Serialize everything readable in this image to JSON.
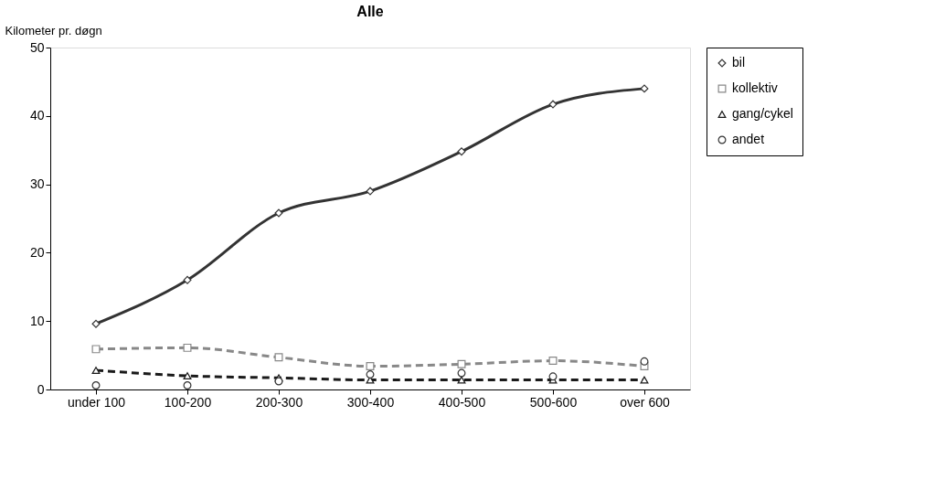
{
  "chart_data": {
    "type": "line",
    "title": "Alle",
    "ylabel": "Kilometer pr. døgn",
    "categories": [
      "under 100",
      "100-200",
      "200-300",
      "300-400",
      "400-500",
      "500-600",
      "over 600"
    ],
    "ylim": [
      0,
      50
    ],
    "yticks": [
      0,
      10,
      20,
      30,
      40,
      50
    ],
    "grid": false,
    "legend": "right",
    "series": [
      {
        "name": "bil",
        "color": "#333333",
        "marker": "diamond",
        "line_style": "solid",
        "values": [
          9.6,
          16.0,
          25.8,
          29.0,
          34.8,
          41.7,
          44.0
        ]
      },
      {
        "name": "kollektiv",
        "color": "#888888",
        "marker": "square",
        "line_style": "dashed",
        "values": [
          5.9,
          6.1,
          4.7,
          3.4,
          3.7,
          4.2,
          3.4
        ]
      },
      {
        "name": "gang/cykel",
        "color": "#1a1a1a",
        "marker": "triangle",
        "line_style": "dashed",
        "values": [
          2.8,
          2.0,
          1.7,
          1.4,
          1.4,
          1.4,
          1.4
        ]
      },
      {
        "name": "andet",
        "type": "scatter",
        "color": "#333333",
        "marker": "circle",
        "values": [
          0.6,
          0.6,
          1.2,
          2.2,
          2.4,
          1.9,
          4.1
        ]
      }
    ]
  }
}
